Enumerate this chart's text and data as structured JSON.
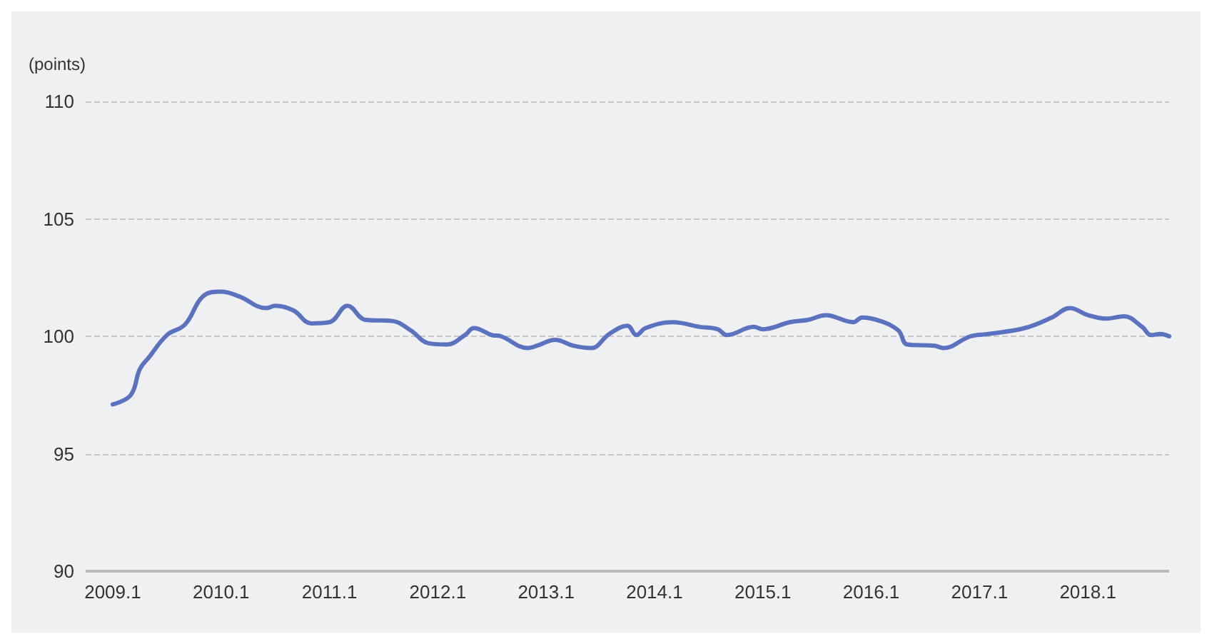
{
  "chart_data": {
    "type": "line",
    "ylabel": "(points)",
    "x": [
      "2009-01",
      "2009-03",
      "2009-04",
      "2009-05",
      "2009-07",
      "2009-09",
      "2009-11",
      "2010-01",
      "2010-03",
      "2010-06",
      "2010-07",
      "2010-09",
      "2010-11",
      "2011-01",
      "2011-03",
      "2011-05",
      "2011-08",
      "2011-10",
      "2011-12",
      "2012-02",
      "2012-04",
      "2012-05",
      "2012-07",
      "2012-08",
      "2012-11",
      "2012-12",
      "2013-02",
      "2013-04",
      "2013-06",
      "2013-08",
      "2013-10",
      "2013-11",
      "2013-12",
      "2014-03",
      "2014-06",
      "2014-08",
      "2014-09",
      "2014-12",
      "2015-01",
      "2015-04",
      "2015-06",
      "2015-08",
      "2015-11",
      "2015-12",
      "2016-02",
      "2016-04",
      "2016-05",
      "2016-08",
      "2016-09",
      "2016-12",
      "2017-02",
      "2017-06",
      "2017-09",
      "2017-11",
      "2018-01",
      "2018-03",
      "2018-05",
      "2018-07",
      "2018-08",
      "2018-09",
      "2018-10"
    ],
    "series": [
      {
        "color": "#5a72c0",
        "values": [
          97.1,
          97.5,
          98.6,
          99.1,
          100.05,
          100.5,
          101.7,
          101.9,
          101.7,
          101.2,
          101.3,
          101.1,
          100.55,
          100.6,
          101.3,
          100.7,
          100.65,
          100.25,
          99.7,
          99.65,
          100.05,
          100.35,
          100.05,
          100.0,
          99.5,
          99.6,
          99.85,
          99.6,
          99.5,
          100.1,
          100.45,
          100.05,
          100.35,
          100.6,
          100.4,
          100.3,
          100.05,
          100.4,
          100.3,
          100.6,
          100.7,
          100.9,
          100.6,
          100.8,
          100.65,
          100.25,
          99.65,
          99.6,
          99.5,
          100.0,
          100.1,
          100.35,
          100.8,
          101.2,
          100.9,
          100.75,
          100.85,
          100.4,
          100.05,
          100.1,
          100.0
        ]
      }
    ],
    "xlim": [
      "2008-10",
      "2018-10"
    ],
    "xticks": [
      {
        "value": "2009-01",
        "label": "2009.1"
      },
      {
        "value": "2010-01",
        "label": "2010.1"
      },
      {
        "value": "2011-01",
        "label": "2011.1"
      },
      {
        "value": "2012-01",
        "label": "2012.1"
      },
      {
        "value": "2013-01",
        "label": "2013.1"
      },
      {
        "value": "2014-01",
        "label": "2014.1"
      },
      {
        "value": "2015-01",
        "label": "2015.1"
      },
      {
        "value": "2016-01",
        "label": "2016.1"
      },
      {
        "value": "2017-01",
        "label": "2017.1"
      },
      {
        "value": "2018-01",
        "label": "2018.1"
      }
    ],
    "ylim": [
      90,
      110
    ],
    "yticks": [
      90,
      95,
      100,
      105,
      110
    ],
    "grid": "y",
    "marker": "none",
    "line_style": "solid"
  }
}
